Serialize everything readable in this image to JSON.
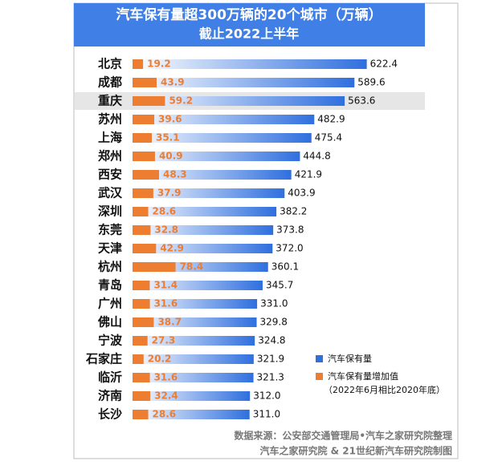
{
  "chart_data": {
    "type": "bar",
    "orientation": "horizontal",
    "title": "汽车保有量超300万辆的20个城市（万辆）",
    "subtitle": "截止2022上半年",
    "categories": [
      "北京",
      "成都",
      "重庆",
      "苏州",
      "上海",
      "郑州",
      "西安",
      "武汉",
      "深圳",
      "东莞",
      "天津",
      "杭州",
      "青岛",
      "广州",
      "佛山",
      "宁波",
      "石家庄",
      "临沂",
      "济南",
      "长沙"
    ],
    "highlight_index": 2,
    "xlim": [
      0,
      700
    ],
    "x2lim": [
      0,
      480
    ],
    "series": [
      {
        "name": "汽车保有量",
        "color": "#2f6fde",
        "values": [
          622.4,
          589.6,
          563.6,
          482.9,
          475.4,
          444.8,
          421.9,
          403.9,
          382.2,
          373.8,
          372.0,
          360.1,
          345.7,
          331.0,
          329.8,
          324.8,
          321.9,
          321.3,
          312.0,
          311.0
        ],
        "value_labels": [
          "622.4",
          "589.6",
          "563.6",
          "482.9",
          "475.4",
          "444.8",
          "421.9",
          "403.9",
          "382.2",
          "373.8",
          "372.0",
          "360.1",
          "345.7",
          "331.0",
          "329.8",
          "324.8",
          "321.9",
          "321.3",
          "312.0",
          "311.0"
        ]
      },
      {
        "name": "汽车保有量增加值",
        "color": "#ed7d31",
        "axis": "x2",
        "values": [
          19.2,
          43.9,
          59.2,
          39.6,
          35.1,
          40.9,
          48.3,
          37.9,
          28.6,
          32.8,
          42.9,
          78.4,
          31.4,
          31.6,
          38.7,
          27.3,
          20.2,
          31.6,
          32.4,
          28.6
        ]
      }
    ],
    "legend_note": "（2022年6月相比2020年底）",
    "source": [
      "数据来源：公安部交通管理局•汽车之家研究院整理",
      "汽车之家研究院 & 21世纪新汽车研究院制图"
    ]
  }
}
